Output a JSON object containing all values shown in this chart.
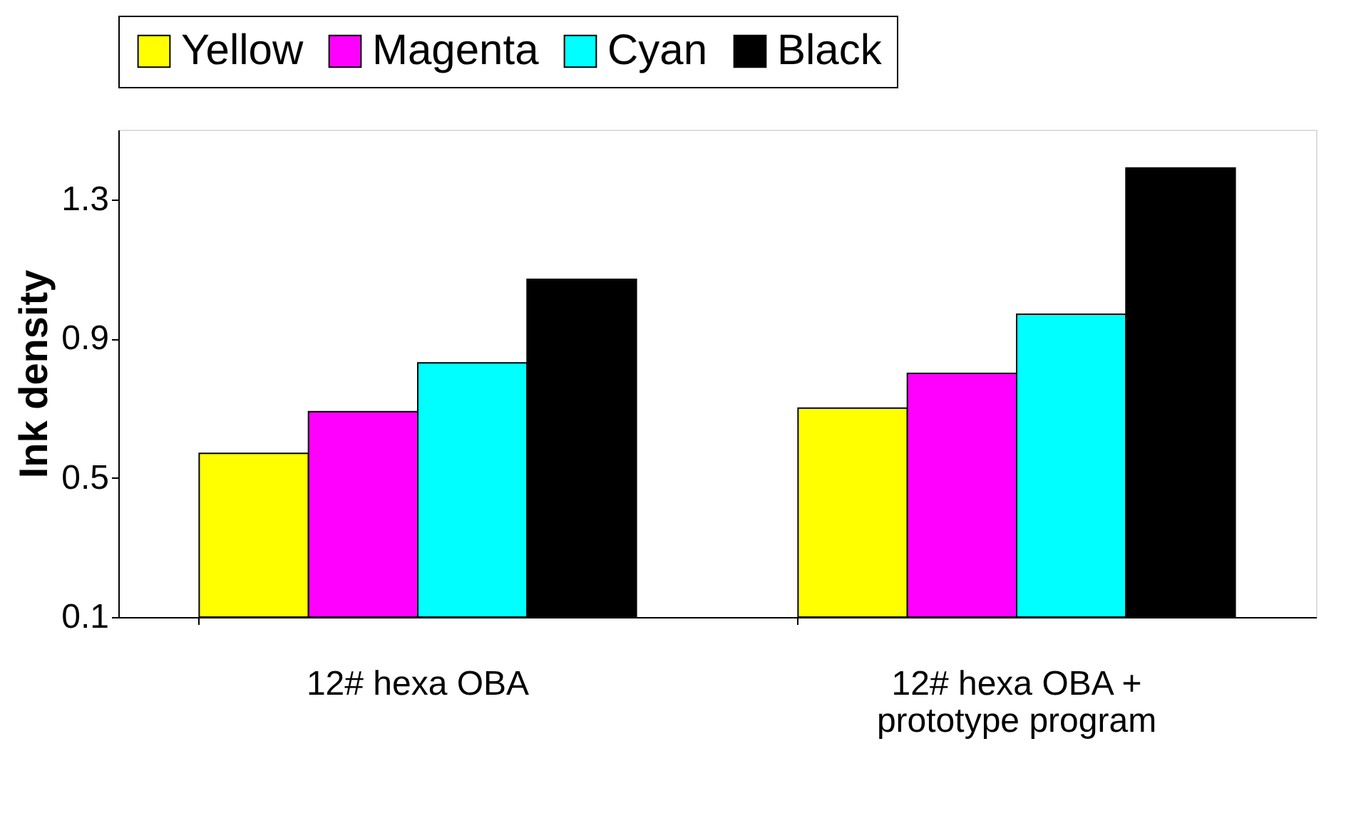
{
  "chart_data": {
    "type": "bar",
    "ylabel": "Ink density",
    "categories": [
      "12# hexa OBA",
      "12# hexa OBA +\nprototype  program"
    ],
    "series": [
      {
        "name": "Yellow",
        "color": "#ffff00",
        "values": [
          0.57,
          0.7
        ]
      },
      {
        "name": "Magenta",
        "color": "#ff00ff",
        "values": [
          0.69,
          0.8
        ]
      },
      {
        "name": "Cyan",
        "color": "#00ffff",
        "values": [
          0.83,
          0.97
        ]
      },
      {
        "name": "Black",
        "color": "#000000",
        "values": [
          1.07,
          1.39
        ]
      }
    ],
    "ylim": [
      0.1,
      1.5
    ],
    "yticks": [
      0.1,
      0.5,
      0.9,
      1.3
    ],
    "grid": false,
    "legend": "top"
  }
}
